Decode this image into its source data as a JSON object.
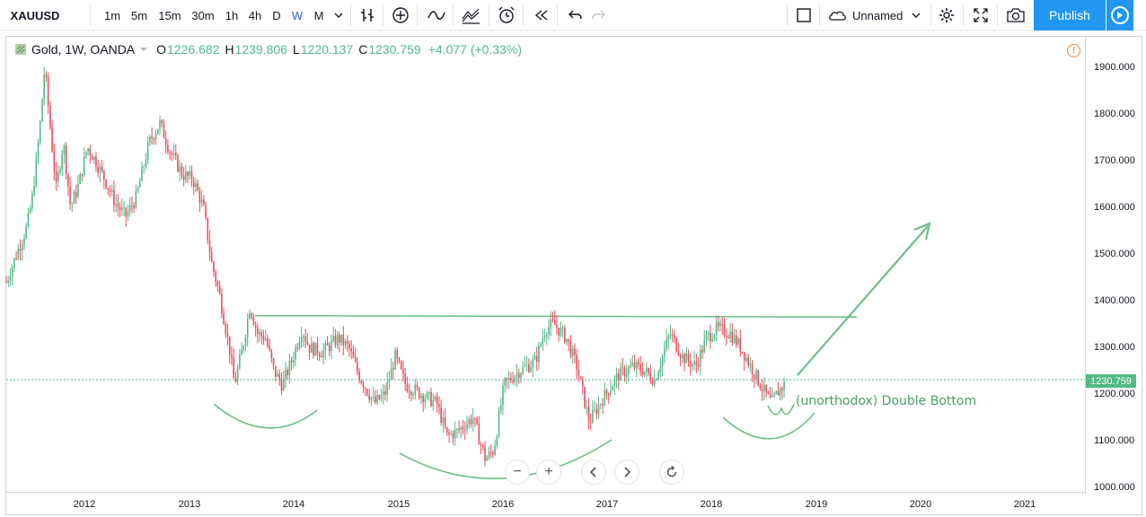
{
  "toolbar": {
    "symbol": "XAUUSD",
    "intervals": [
      "1m",
      "5m",
      "15m",
      "30m",
      "1h",
      "4h",
      "D",
      "W",
      "M"
    ],
    "active_interval": "W",
    "layout_name": "Unnamed",
    "publish_label": "Publish"
  },
  "legend": {
    "title": "Gold, 1W, OANDA",
    "open_label": "O",
    "open": "1226.682",
    "high_label": "H",
    "high": "1239.806",
    "low_label": "L",
    "low": "1220.137",
    "close_label": "C",
    "close": "1230.759",
    "change": "+4.077 (+0.33%)"
  },
  "price_scale": {
    "labels": [
      "1900.000",
      "1800.000",
      "1700.000",
      "1600.000",
      "1500.000",
      "1400.000",
      "1300.000",
      "1200.000",
      "1100.000",
      "1000.000"
    ],
    "current_price": "1230.759"
  },
  "time_scale": {
    "labels": [
      "2012",
      "2013",
      "2014",
      "2015",
      "2016",
      "2017",
      "2018",
      "2019",
      "2020",
      "2021"
    ]
  },
  "annotation": "(unorthodox) Double Bottom",
  "colors": {
    "up": "#53b987",
    "down": "#eb4d5c",
    "accent": "#2196f3",
    "drawing": "#6fbf86"
  },
  "chart_data": {
    "type": "candlestick",
    "title": "Gold, 1W, OANDA",
    "ylim": [
      1000,
      1950
    ],
    "xlim": [
      2011.3,
      2021.7
    ],
    "resistance": 1368,
    "current": 1230.759,
    "path": [
      [
        2011.3,
        1440
      ],
      [
        2011.4,
        1500
      ],
      [
        2011.5,
        1560
      ],
      [
        2011.55,
        1620
      ],
      [
        2011.62,
        1760
      ],
      [
        2011.67,
        1900
      ],
      [
        2011.72,
        1780
      ],
      [
        2011.78,
        1640
      ],
      [
        2011.85,
        1740
      ],
      [
        2011.92,
        1600
      ],
      [
        2012.0,
        1650
      ],
      [
        2012.08,
        1730
      ],
      [
        2012.16,
        1700
      ],
      [
        2012.25,
        1660
      ],
      [
        2012.35,
        1610
      ],
      [
        2012.45,
        1580
      ],
      [
        2012.55,
        1620
      ],
      [
        2012.68,
        1740
      ],
      [
        2012.78,
        1780
      ],
      [
        2012.88,
        1720
      ],
      [
        2013.0,
        1670
      ],
      [
        2013.1,
        1660
      ],
      [
        2013.2,
        1600
      ],
      [
        2013.28,
        1480
      ],
      [
        2013.35,
        1420
      ],
      [
        2013.45,
        1300
      ],
      [
        2013.5,
        1220
      ],
      [
        2013.58,
        1300
      ],
      [
        2013.65,
        1390
      ],
      [
        2013.72,
        1330
      ],
      [
        2013.8,
        1320
      ],
      [
        2013.88,
        1250
      ],
      [
        2013.96,
        1220
      ],
      [
        2014.05,
        1270
      ],
      [
        2014.15,
        1340
      ],
      [
        2014.22,
        1300
      ],
      [
        2014.35,
        1290
      ],
      [
        2014.5,
        1320
      ],
      [
        2014.6,
        1300
      ],
      [
        2014.7,
        1240
      ],
      [
        2014.85,
        1180
      ],
      [
        2014.95,
        1200
      ],
      [
        2015.05,
        1280
      ],
      [
        2015.15,
        1220
      ],
      [
        2015.3,
        1200
      ],
      [
        2015.45,
        1180
      ],
      [
        2015.55,
        1110
      ],
      [
        2015.65,
        1120
      ],
      [
        2015.8,
        1150
      ],
      [
        2015.92,
        1060
      ],
      [
        2016.0,
        1080
      ],
      [
        2016.1,
        1220
      ],
      [
        2016.25,
        1250
      ],
      [
        2016.4,
        1270
      ],
      [
        2016.5,
        1340
      ],
      [
        2016.58,
        1350
      ],
      [
        2016.7,
        1320
      ],
      [
        2016.8,
        1260
      ],
      [
        2016.92,
        1140
      ],
      [
        2017.05,
        1190
      ],
      [
        2017.2,
        1240
      ],
      [
        2017.35,
        1260
      ],
      [
        2017.45,
        1250
      ],
      [
        2017.55,
        1230
      ],
      [
        2017.7,
        1330
      ],
      [
        2017.82,
        1280
      ],
      [
        2017.95,
        1260
      ],
      [
        2018.05,
        1320
      ],
      [
        2018.15,
        1340
      ],
      [
        2018.28,
        1330
      ],
      [
        2018.38,
        1300
      ],
      [
        2018.5,
        1250
      ],
      [
        2018.62,
        1200
      ],
      [
        2018.68,
        1180
      ],
      [
        2018.74,
        1205
      ],
      [
        2018.8,
        1220
      ]
    ]
  }
}
